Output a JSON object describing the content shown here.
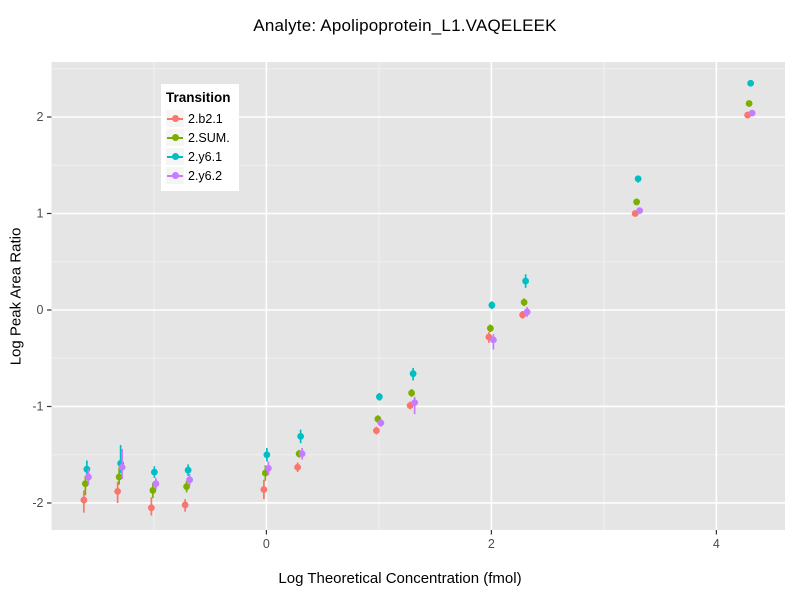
{
  "title": "Analyte: Apolipoprotein_L1.VAQELEEK",
  "legend": {
    "title": "Transition",
    "entries": [
      {
        "label": "2.b2.1",
        "color": "#F8766D"
      },
      {
        "label": "2.SUM.",
        "color": "#7CAE00"
      },
      {
        "label": "2.y6.1",
        "color": "#00BFC4"
      },
      {
        "label": "2.y6.2",
        "color": "#C77CFF"
      }
    ]
  },
  "colors": {
    "panel_bg": "#E5E5E5",
    "grid_major": "#FFFFFF",
    "grid_minor": "#F0F0F0",
    "tick_label": "#4D4D4D",
    "tick_mark": "#333333"
  },
  "chart_data": {
    "type": "scatter",
    "title": "Analyte: Apolipoprotein_L1.VAQELEEK",
    "xlabel": "Log Theoretical Concentration (fmol)",
    "ylabel": "Log Peak Area Ratio",
    "x_ticks": [
      0,
      2,
      4
    ],
    "x_minor_ticks": [
      -1,
      1,
      3
    ],
    "y_ticks": [
      -2,
      -1,
      0,
      1,
      2
    ],
    "y_minor_ticks": [
      -1.5,
      -0.5,
      0.5,
      1.5,
      2.5
    ],
    "x_range": [
      -1.91,
      4.61
    ],
    "y_range": [
      -2.28,
      2.57
    ],
    "legend_position": "inside-top-left",
    "grid": true,
    "point_style": "pointrange (point with vertical error bar)",
    "series": [
      {
        "name": "2.b2.1",
        "color": "#F8766D",
        "points": [
          {
            "x": -1.6,
            "y": -1.97,
            "lo": -2.1,
            "hi": -1.87
          },
          {
            "x": -1.3,
            "y": -1.88,
            "lo": -2.0,
            "hi": -1.78
          },
          {
            "x": -1.0,
            "y": -2.05,
            "lo": -2.13,
            "hi": -1.94
          },
          {
            "x": -0.7,
            "y": -2.02,
            "lo": -2.09,
            "hi": -1.96
          },
          {
            "x": 0.0,
            "y": -1.86,
            "lo": -1.96,
            "hi": -1.76
          },
          {
            "x": 0.3,
            "y": -1.63,
            "lo": -1.68,
            "hi": -1.58
          },
          {
            "x": 1.0,
            "y": -1.25,
            "lo": -1.29,
            "hi": -1.21
          },
          {
            "x": 1.3,
            "y": -0.99,
            "lo": -1.03,
            "hi": -0.95
          },
          {
            "x": 2.0,
            "y": -0.28,
            "lo": -0.34,
            "hi": -0.23
          },
          {
            "x": 2.3,
            "y": -0.05,
            "lo": -0.09,
            "hi": -0.01
          },
          {
            "x": 3.3,
            "y": 1.0,
            "lo": 0.97,
            "hi": 1.03
          },
          {
            "x": 4.3,
            "y": 2.02,
            "lo": 2.0,
            "hi": 2.04
          }
        ]
      },
      {
        "name": "2.SUM.",
        "color": "#7CAE00",
        "points": [
          {
            "x": -1.6,
            "y": -1.8,
            "lo": -1.92,
            "hi": -1.72
          },
          {
            "x": -1.3,
            "y": -1.73,
            "lo": -1.81,
            "hi": -1.63
          },
          {
            "x": -1.0,
            "y": -1.87,
            "lo": -1.95,
            "hi": -1.79
          },
          {
            "x": -0.7,
            "y": -1.83,
            "lo": -1.89,
            "hi": -1.77
          },
          {
            "x": 0.0,
            "y": -1.69,
            "lo": -1.77,
            "hi": -1.61
          },
          {
            "x": 0.3,
            "y": -1.49,
            "lo": -1.53,
            "hi": -1.45
          },
          {
            "x": 1.0,
            "y": -1.13,
            "lo": -1.17,
            "hi": -1.09
          },
          {
            "x": 1.3,
            "y": -0.86,
            "lo": -0.9,
            "hi": -0.82
          },
          {
            "x": 2.0,
            "y": -0.19,
            "lo": -0.23,
            "hi": -0.15
          },
          {
            "x": 2.3,
            "y": 0.08,
            "lo": 0.04,
            "hi": 0.12
          },
          {
            "x": 3.3,
            "y": 1.12,
            "lo": 1.09,
            "hi": 1.15
          },
          {
            "x": 4.3,
            "y": 2.14,
            "lo": 2.11,
            "hi": 2.17
          }
        ]
      },
      {
        "name": "2.y6.1",
        "color": "#00BFC4",
        "points": [
          {
            "x": -1.6,
            "y": -1.65,
            "lo": -1.72,
            "hi": -1.56
          },
          {
            "x": -1.3,
            "y": -1.59,
            "lo": -1.69,
            "hi": -1.4
          },
          {
            "x": -1.0,
            "y": -1.68,
            "lo": -1.74,
            "hi": -1.62
          },
          {
            "x": -0.7,
            "y": -1.66,
            "lo": -1.72,
            "hi": -1.6
          },
          {
            "x": 0.0,
            "y": -1.5,
            "lo": -1.57,
            "hi": -1.43
          },
          {
            "x": 0.3,
            "y": -1.31,
            "lo": -1.38,
            "hi": -1.24
          },
          {
            "x": 1.0,
            "y": -0.9,
            "lo": -0.94,
            "hi": -0.86
          },
          {
            "x": 1.3,
            "y": -0.66,
            "lo": -0.73,
            "hi": -0.6
          },
          {
            "x": 2.0,
            "y": 0.05,
            "lo": 0.01,
            "hi": 0.09
          },
          {
            "x": 2.3,
            "y": 0.3,
            "lo": 0.23,
            "hi": 0.37
          },
          {
            "x": 3.3,
            "y": 1.36,
            "lo": 1.32,
            "hi": 1.39
          },
          {
            "x": 4.3,
            "y": 2.35,
            "lo": 2.33,
            "hi": 2.37
          }
        ]
      },
      {
        "name": "2.y6.2",
        "color": "#C77CFF",
        "points": [
          {
            "x": -1.6,
            "y": -1.73,
            "lo": -1.81,
            "hi": -1.65
          },
          {
            "x": -1.3,
            "y": -1.63,
            "lo": -1.75,
            "hi": -1.44
          },
          {
            "x": -1.0,
            "y": -1.8,
            "lo": -1.86,
            "hi": -1.74
          },
          {
            "x": -0.7,
            "y": -1.76,
            "lo": -1.82,
            "hi": -1.7
          },
          {
            "x": 0.0,
            "y": -1.64,
            "lo": -1.71,
            "hi": -1.57
          },
          {
            "x": 0.3,
            "y": -1.49,
            "lo": -1.55,
            "hi": -1.43
          },
          {
            "x": 1.0,
            "y": -1.17,
            "lo": -1.21,
            "hi": -1.13
          },
          {
            "x": 1.3,
            "y": -0.96,
            "lo": -1.08,
            "hi": -0.9
          },
          {
            "x": 2.0,
            "y": -0.31,
            "lo": -0.41,
            "hi": -0.25
          },
          {
            "x": 2.3,
            "y": -0.02,
            "lo": -0.07,
            "hi": 0.03
          },
          {
            "x": 3.3,
            "y": 1.03,
            "lo": 1.0,
            "hi": 1.06
          },
          {
            "x": 4.3,
            "y": 2.04,
            "lo": 2.01,
            "hi": 2.07
          }
        ]
      }
    ]
  }
}
